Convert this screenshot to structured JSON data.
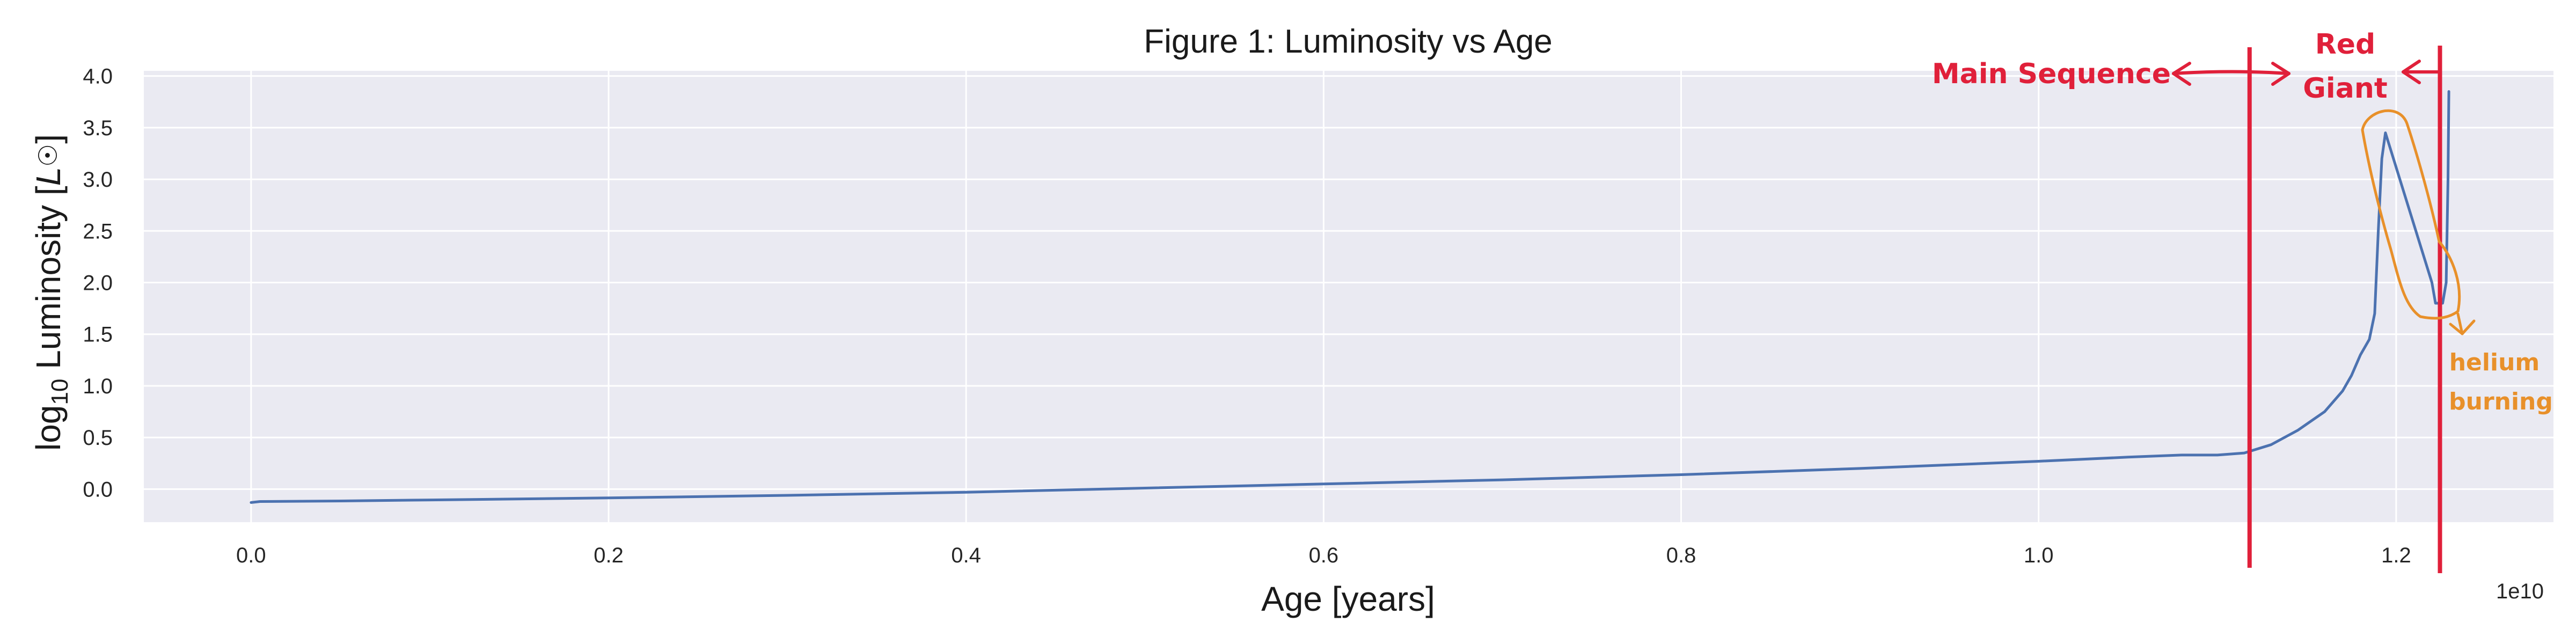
{
  "chart_data": {
    "type": "line",
    "title": "Figure 1: Luminosity vs Age",
    "xlabel": "Age [years]",
    "ylabel_prefix": "log",
    "ylabel_sub": "10",
    "ylabel_main": " Luminosity [",
    "ylabel_symbol": "L",
    "ylabel_odot": "☉",
    "ylabel_end": "]",
    "x_offset_label": "1e10",
    "xlim": [
      -0.06,
      1.288
    ],
    "ylim": [
      -0.32,
      4.05
    ],
    "x_scale": 10000000000,
    "x_ticks": [
      0.0,
      0.2,
      0.4,
      0.6,
      0.8,
      1.0,
      1.2
    ],
    "x_tick_labels": [
      "0.0",
      "0.2",
      "0.4",
      "0.6",
      "0.8",
      "1.0",
      "1.2"
    ],
    "y_ticks": [
      0.0,
      0.5,
      1.0,
      1.5,
      2.0,
      2.5,
      3.0,
      3.5,
      4.0
    ],
    "y_tick_labels": [
      "0.0",
      "0.5",
      "1.0",
      "1.5",
      "2.0",
      "2.5",
      "3.0",
      "3.5",
      "4.0"
    ],
    "grid": true,
    "series": [
      {
        "color": "#4c72b0",
        "x": [
          0.0,
          0.005,
          0.05,
          0.1,
          0.2,
          0.3,
          0.4,
          0.5,
          0.6,
          0.7,
          0.8,
          0.9,
          1.0,
          1.05,
          1.08,
          1.1,
          1.115,
          1.13,
          1.145,
          1.16,
          1.17,
          1.175,
          1.18,
          1.185,
          1.188,
          1.19,
          1.192,
          1.194,
          1.22,
          1.222,
          1.226,
          1.228,
          1.229,
          1.2295
        ],
        "y": [
          -0.13,
          -0.12,
          -0.115,
          -0.105,
          -0.085,
          -0.06,
          -0.03,
          0.01,
          0.05,
          0.09,
          0.14,
          0.2,
          0.27,
          0.31,
          0.33,
          0.33,
          0.35,
          0.43,
          0.57,
          0.75,
          0.95,
          1.1,
          1.3,
          1.45,
          1.7,
          2.5,
          3.2,
          3.45,
          2.0,
          1.8,
          1.8,
          2.0,
          3.0,
          3.85
        ]
      }
    ],
    "annotations": {
      "main_sequence": "Main Sequence",
      "red_giant_line1": "Red",
      "red_giant_line2": "Giant",
      "helium_line1": "helium",
      "helium_line2": "burning",
      "vline_main_sequence_end_x": 1.118,
      "vline_red_giant_end_x": 1.2245
    },
    "colors": {
      "plot_background": "#eaeaf2",
      "grid": "#ffffff",
      "line": "#4c72b0",
      "annotation_red": "#e0203a",
      "annotation_orange": "#e8902a"
    }
  }
}
